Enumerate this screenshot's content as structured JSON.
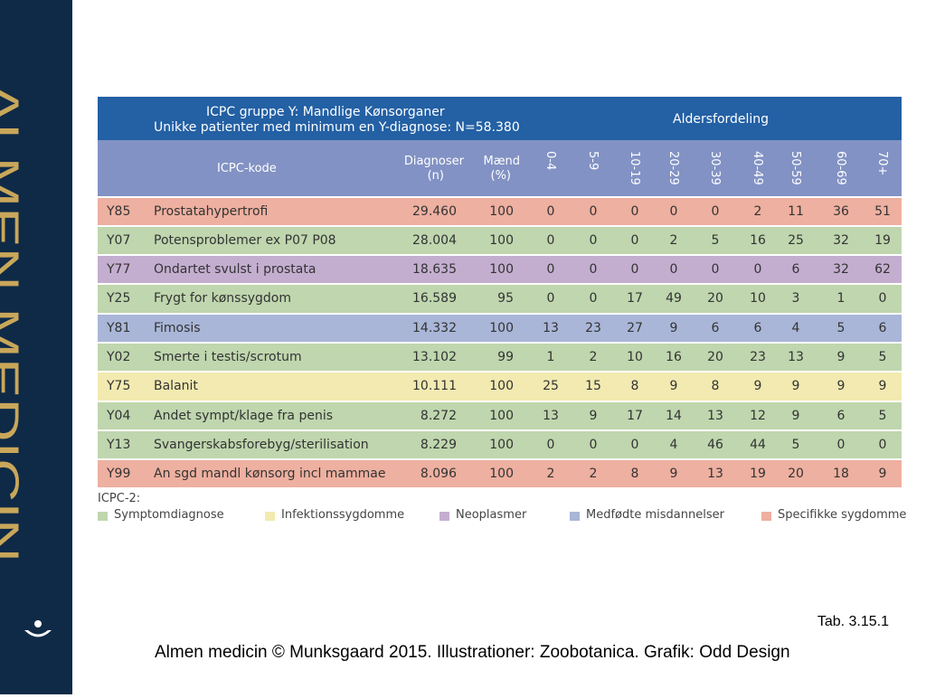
{
  "sidebar": {
    "title": "ALMEN MEDICIN"
  },
  "table": {
    "title": [
      "ICPC gruppe Y: Mandlige Kønsorganer",
      "Unikke patienter med minimum en Y-diagnose: N=58.380"
    ],
    "age_title": "Aldersfordeling",
    "columns": {
      "code": "ICPC-kode",
      "diagnoses": [
        "Diagnoser",
        "(n)"
      ],
      "men": [
        "Mænd",
        "(%)"
      ],
      "ages": [
        "0-4",
        "5-9",
        "10-19",
        "20-29",
        "30-39",
        "40-49",
        "50-59",
        "60-69",
        "70+"
      ]
    },
    "rows": [
      {
        "color": "#eeb0a0",
        "cells": [
          "Y85",
          "Prostatahypertrofi",
          "29.460",
          "100",
          "0",
          "0",
          "0",
          "0",
          "0",
          "2",
          "11",
          "36",
          "51"
        ]
      },
      {
        "color": "#bfd6ae",
        "cells": [
          "Y07",
          "Potensproblemer ex P07 P08",
          "28.004",
          "100",
          "0",
          "0",
          "0",
          "2",
          "5",
          "16",
          "25",
          "32",
          "19"
        ]
      },
      {
        "color": "#c4aed0",
        "cells": [
          "Y77",
          "Ondartet svulst i prostata",
          "18.635",
          "100",
          "0",
          "0",
          "0",
          "0",
          "0",
          "0",
          "6",
          "32",
          "62"
        ]
      },
      {
        "color": "#bfd6ae",
        "cells": [
          "Y25",
          "Frygt for kønssygdom",
          "16.589",
          "95",
          "0",
          "0",
          "17",
          "49",
          "20",
          "10",
          "3",
          "1",
          "0"
        ]
      },
      {
        "color": "#a9b6d8",
        "cells": [
          "Y81",
          "Fimosis",
          "14.332",
          "100",
          "13",
          "23",
          "27",
          "9",
          "6",
          "6",
          "4",
          "5",
          "6"
        ]
      },
      {
        "color": "#bfd6ae",
        "cells": [
          "Y02",
          "Smerte i testis/scrotum",
          "13.102",
          "99",
          "1",
          "2",
          "10",
          "16",
          "20",
          "23",
          "13",
          "9",
          "5"
        ]
      },
      {
        "color": "#f2eab0",
        "cells": [
          "Y75",
          "Balanit",
          "10.111",
          "100",
          "25",
          "15",
          "8",
          "9",
          "8",
          "9",
          "9",
          "9",
          "9"
        ]
      },
      {
        "color": "#bfd6ae",
        "cells": [
          "Y04",
          "Andet sympt/klage fra penis",
          "8.272",
          "100",
          "13",
          "9",
          "17",
          "14",
          "13",
          "12",
          "9",
          "6",
          "5"
        ]
      },
      {
        "color": "#bfd6ae",
        "cells": [
          "Y13",
          "Svangerskabsforebyg/sterilisation",
          "8.229",
          "100",
          "0",
          "0",
          "0",
          "4",
          "46",
          "44",
          "5",
          "0",
          "0"
        ]
      },
      {
        "color": "#eeb0a0",
        "cells": [
          "Y99",
          "An sgd mandl kønsorg incl mammae",
          "8.096",
          "100",
          "2",
          "2",
          "8",
          "9",
          "13",
          "19",
          "20",
          "18",
          "9"
        ]
      }
    ]
  },
  "legend": {
    "title": "ICPC-2:",
    "items": [
      {
        "label": "Symptomdiagnose",
        "color": "#bfd6ae"
      },
      {
        "label": "Infektionssygdomme",
        "color": "#f2eab0"
      },
      {
        "label": "Neoplasmer",
        "color": "#c4aed0"
      },
      {
        "label": "Medfødte misdannelser",
        "color": "#a9b6d8"
      },
      {
        "label": "Specifikke sygdomme",
        "color": "#eeb0a0"
      }
    ]
  },
  "caption": "Tab. 3.15.1",
  "footer": "Almen medicin © Munksgaard 2015. Illustrationer: Zoobotanica. Grafik: Odd Design"
}
